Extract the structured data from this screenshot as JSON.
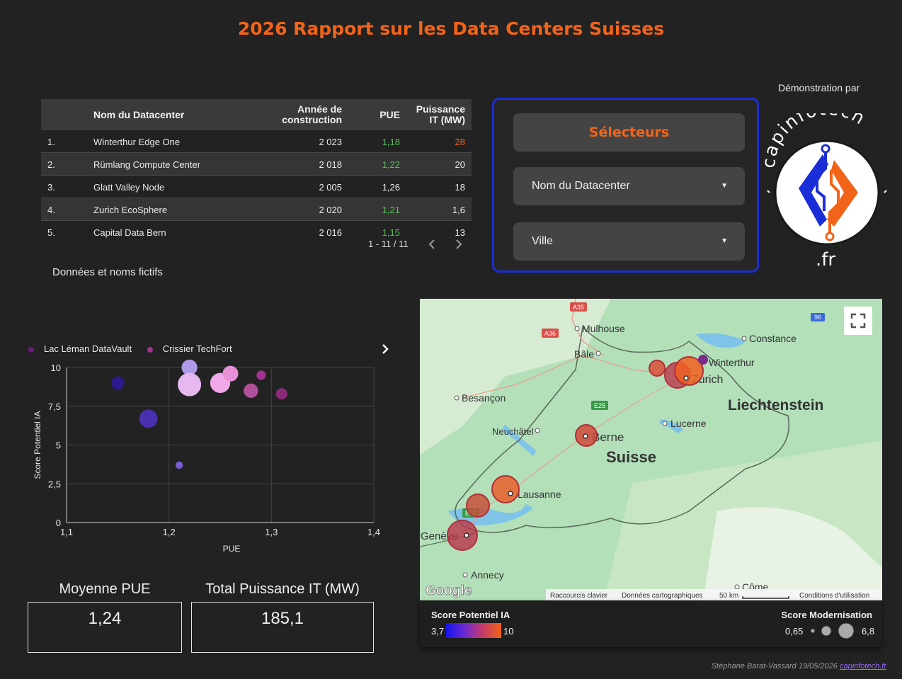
{
  "title": "2026 Rapport sur les Data Centers Suisses",
  "table": {
    "headers": {
      "name": "Nom du Datacenter",
      "year_l1": "Année de",
      "year_l2": "construction",
      "pue": "PUE",
      "mw_l1": "Puissance",
      "mw_l2": "IT (MW)"
    },
    "rows": [
      {
        "idx": "1.",
        "name": "Winterthur Edge One",
        "year": "2 023",
        "pue": "1,18",
        "mw": "28"
      },
      {
        "idx": "2.",
        "name": "Rümlang Compute Center",
        "year": "2 018",
        "pue": "1,22",
        "mw": "20"
      },
      {
        "idx": "3.",
        "name": "Glatt Valley Node",
        "year": "2 005",
        "pue": "1,26",
        "mw": "18"
      },
      {
        "idx": "4.",
        "name": "Zurich EcoSphere",
        "year": "2 020",
        "pue": "1,21",
        "mw": "1,6"
      },
      {
        "idx": "5.",
        "name": "Capital Data Bern",
        "year": "2 016",
        "pue": "1,15",
        "mw": "13"
      }
    ],
    "pager": "1 - 11 / 11",
    "prev_icon": "chevron-left-icon",
    "next_icon": "chevron-right-icon"
  },
  "note": "Données et noms fictifs",
  "selector": {
    "header": "Sélecteurs",
    "dropdown1": "Nom du Datacenter",
    "dropdown2": "Ville"
  },
  "demo": {
    "label": "Démonstration par",
    "logo_text": "capinfotech",
    "logo_suffix": ".fr"
  },
  "legend": {
    "items": [
      {
        "label": "Lac Léman DataVault",
        "color": "#6a1b7a"
      },
      {
        "label": "Crissier TechFort",
        "color": "#a0348f"
      }
    ],
    "more_icon": "chevron-right-icon"
  },
  "chart_data": {
    "type": "scatter",
    "xlabel": "PUE",
    "ylabel": "Score Potentiel IA",
    "xlim": [
      1.1,
      1.4
    ],
    "ylim": [
      0,
      10
    ],
    "xticks": [
      "1,1",
      "1,2",
      "1,3",
      "1,4"
    ],
    "yticks": [
      "0",
      "2,5",
      "5",
      "7,5",
      "10"
    ],
    "grid": true,
    "points": [
      {
        "x": 1.15,
        "y": 9.0,
        "size": 0.35,
        "color": "#2a1a8c"
      },
      {
        "x": 1.18,
        "y": 6.7,
        "size": 0.55,
        "color": "#4a2fb0"
      },
      {
        "x": 1.21,
        "y": 3.7,
        "size": 0.12,
        "color": "#7b5bd6"
      },
      {
        "x": 1.22,
        "y": 10.0,
        "size": 0.45,
        "color": "#b09ae8"
      },
      {
        "x": 1.22,
        "y": 8.9,
        "size": 0.75,
        "color": "#e6b8f0"
      },
      {
        "x": 1.25,
        "y": 9.0,
        "size": 0.62,
        "color": "#f0a8e8"
      },
      {
        "x": 1.26,
        "y": 9.6,
        "size": 0.45,
        "color": "#e890d8"
      },
      {
        "x": 1.28,
        "y": 8.5,
        "size": 0.4,
        "color": "#b0509a"
      },
      {
        "x": 1.29,
        "y": 9.5,
        "size": 0.2,
        "color": "#a0348f"
      },
      {
        "x": 1.31,
        "y": 8.3,
        "size": 0.28,
        "color": "#8c2a7a"
      }
    ]
  },
  "kpis": [
    {
      "label": "Moyenne PUE",
      "value": "1,24"
    },
    {
      "label": "Total Puissance IT (MW)",
      "value": "185,1"
    }
  ],
  "map": {
    "cities": [
      "Mulhouse",
      "Bâle",
      "Besançon",
      "Constance",
      "Winterthur",
      "Zurich",
      "Liechtenstein",
      "Lucerne",
      "Neuchâtel",
      "Berne",
      "Suisse",
      "Lausanne",
      "Genève",
      "Annecy",
      "Côme"
    ],
    "roads": [
      "A35",
      "A36",
      "E25",
      "E62",
      "96"
    ],
    "google": "Google",
    "attribution": [
      "Raccourcis clavier",
      "Données cartographiques",
      "50 km",
      "Conditions d'utilisation"
    ],
    "fullscreen_icon": "fullscreen-icon"
  },
  "map_legend": {
    "color_title": "Score Potentiel IA",
    "color_min": "3,7",
    "color_max": "10",
    "size_title": "Score Modernisation",
    "size_min": "0,65",
    "size_max": "6,8"
  },
  "footer": {
    "text": "Stéphane Barat-Vassard 19/05/2026 ",
    "link": "capinfotech.fr"
  }
}
